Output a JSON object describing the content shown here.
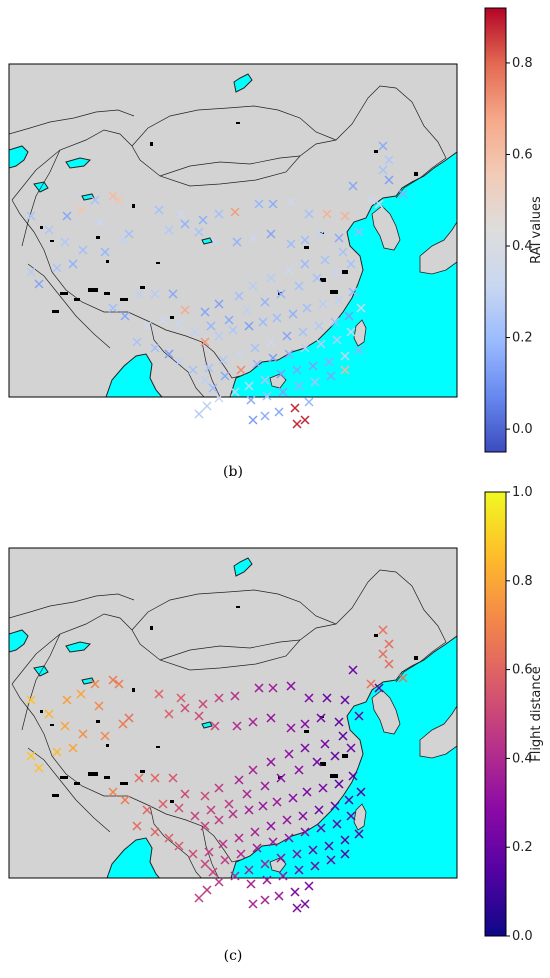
{
  "panels": [
    {
      "id": "b",
      "caption": "(b)",
      "colorbar": {
        "label": "RAI values",
        "ticks": [
          0.0,
          0.2,
          0.4,
          0.6,
          0.8
        ],
        "tick_labels": [
          "0.0",
          "0.2",
          "0.4",
          "0.6",
          "0.8"
        ],
        "range": [
          -0.05,
          0.92
        ],
        "colormap": "coolwarm",
        "stops": [
          "#3b4cc0",
          "#6788ee",
          "#9abbff",
          "#c9d7f0",
          "#dddddd",
          "#f2cbb7",
          "#f7a889",
          "#e26952",
          "#b40426"
        ]
      },
      "marker": "x",
      "point_count": 150
    },
    {
      "id": "c",
      "caption": "(c)",
      "colorbar": {
        "label": "Flight distance",
        "ticks": [
          0.0,
          0.2,
          0.4,
          0.6,
          0.8,
          1.0
        ],
        "tick_labels": [
          "0.0",
          "0.2",
          "0.4",
          "0.6",
          "0.8",
          "1.0"
        ],
        "range": [
          0.0,
          1.0
        ],
        "colormap": "plasma",
        "stops": [
          "#0d0887",
          "#5302a3",
          "#8b0aa5",
          "#b83289",
          "#db5c68",
          "#f48849",
          "#febd2a",
          "#f0f921"
        ]
      },
      "marker": "x",
      "point_count": 140
    }
  ],
  "map_colors": {
    "land": "#d3d3d3",
    "water": "#00ffff",
    "border": "#222222",
    "lakes": "#000000"
  }
}
